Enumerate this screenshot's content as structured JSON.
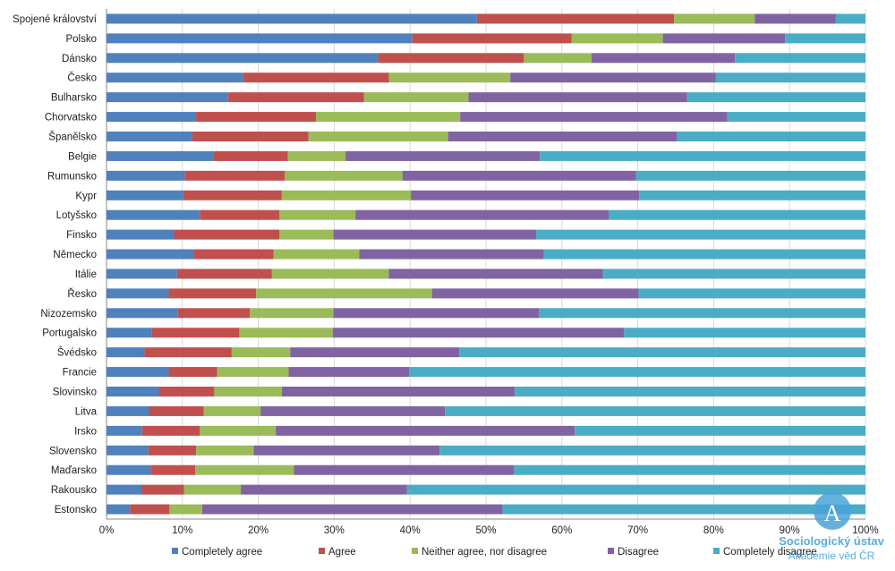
{
  "chart_data": {
    "type": "bar",
    "orientation": "horizontal",
    "stacked": "percent",
    "categories": [
      "Spojené království",
      "Polsko",
      "Dánsko",
      "Česko",
      "Bulharsko",
      "Chorvatsko",
      "Španělsko",
      "Belgie",
      "Rumunsko",
      "Kypr",
      "Lotyšsko",
      "Finsko",
      "Německo",
      "Itálie",
      "Řesko",
      "Nizozemsko",
      "Portugalsko",
      "Švédsko",
      "Francie",
      "Slovinsko",
      "Litva",
      "Irsko",
      "Slovensko",
      "Maďarsko",
      "Rakousko",
      "Estonsko"
    ],
    "series": [
      {
        "name": "Completely agree",
        "color": "#4f81bd",
        "values": [
          48.8,
          40.3,
          35.8,
          18.0,
          16.0,
          11.8,
          11.3,
          14.1,
          10.3,
          10.1,
          12.3,
          8.9,
          11.5,
          9.3,
          8.2,
          9.4,
          6.0,
          5.0,
          8.2,
          6.9,
          5.6,
          4.7,
          5.5,
          5.8,
          4.6,
          3.1
        ]
      },
      {
        "name": "Agree",
        "color": "#c0504d",
        "values": [
          26.0,
          21.0,
          19.2,
          19.2,
          17.9,
          15.8,
          15.3,
          9.8,
          13.2,
          13.0,
          10.5,
          13.9,
          10.5,
          12.5,
          11.5,
          9.5,
          11.5,
          11.5,
          6.4,
          7.3,
          7.2,
          7.6,
          6.3,
          5.9,
          5.6,
          5.2
        ]
      },
      {
        "name": "Neither agree, nor disagree",
        "color": "#9bbb59",
        "values": [
          10.6,
          12.0,
          8.9,
          16.0,
          13.8,
          19.0,
          18.4,
          7.6,
          15.5,
          17.0,
          10.0,
          7.1,
          11.3,
          15.4,
          23.2,
          11.0,
          12.3,
          7.7,
          9.4,
          8.9,
          7.5,
          10.0,
          7.6,
          13.0,
          7.5,
          4.3
        ]
      },
      {
        "name": "Disagree",
        "color": "#8064a2",
        "values": [
          10.7,
          16.1,
          18.9,
          27.1,
          28.8,
          35.2,
          30.2,
          25.6,
          30.8,
          30.1,
          33.4,
          26.7,
          24.3,
          28.2,
          27.2,
          27.1,
          38.4,
          22.3,
          15.9,
          30.7,
          24.3,
          39.4,
          24.5,
          29.0,
          21.9,
          39.6
        ]
      },
      {
        "name": "Completely disagree",
        "color": "#4bacc6",
        "values": [
          3.9,
          10.6,
          17.2,
          19.7,
          23.5,
          18.2,
          24.8,
          42.9,
          30.2,
          29.8,
          33.8,
          43.4,
          42.4,
          34.6,
          29.9,
          43.0,
          31.8,
          53.5,
          60.1,
          46.2,
          55.4,
          38.3,
          56.1,
          46.3,
          60.4,
          47.8
        ]
      }
    ],
    "xaxis": {
      "ticks": [
        "0%",
        "10%",
        "20%",
        "30%",
        "40%",
        "50%",
        "60%",
        "70%",
        "80%",
        "90%",
        "100%"
      ],
      "range": [
        0,
        100
      ],
      "unit": "%"
    },
    "grid": true,
    "legend": "bottom",
    "watermark": {
      "line1": "Sociologický ústav",
      "line2": "Akademie věd ČR"
    }
  }
}
